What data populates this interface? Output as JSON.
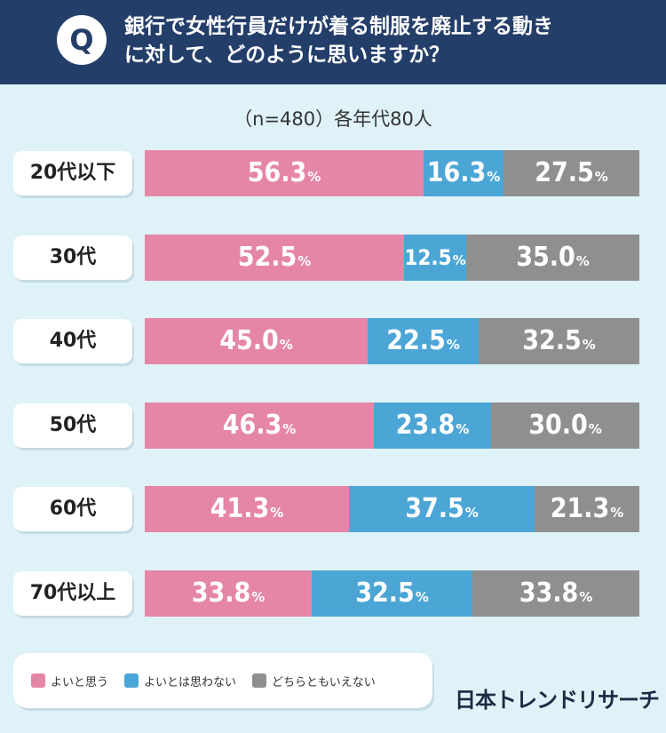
{
  "question": {
    "badge": "Q",
    "line1": "銀行で女性行員だけが着る制服を廃止する動き",
    "line2": "に対して、どのように思いますか？"
  },
  "sample_note": "（n=480）各年代80人",
  "legend": {
    "items": [
      {
        "label": "よいと思う",
        "color": "#e586a8"
      },
      {
        "label": "よいとは思わない",
        "color": "#4ba6d6"
      },
      {
        "label": "どちらともいえない",
        "color": "#8f8f8f"
      }
    ]
  },
  "brand": "日本トレンドリサーチ",
  "chart_data": {
    "type": "bar",
    "stacked": true,
    "orientation": "horizontal",
    "categories": [
      "20代以下",
      "30代",
      "40代",
      "50代",
      "60代",
      "70代以上"
    ],
    "series": [
      {
        "name": "よいと思う",
        "color": "#e586a8",
        "values": [
          56.3,
          52.5,
          45.0,
          46.3,
          41.3,
          33.8
        ]
      },
      {
        "name": "よいとは思わない",
        "color": "#4ba6d6",
        "values": [
          16.3,
          12.5,
          22.5,
          23.8,
          37.5,
          32.5
        ]
      },
      {
        "name": "どちらともいえない",
        "color": "#8f8f8f",
        "values": [
          27.5,
          35.0,
          32.5,
          30.0,
          21.3,
          33.8
        ]
      }
    ],
    "value_suffix": "%",
    "xlim": [
      0,
      100
    ],
    "grid": false,
    "legend_position": "bottom-left"
  }
}
